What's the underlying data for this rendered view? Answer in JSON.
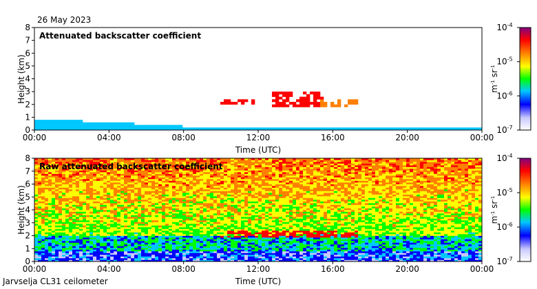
{
  "date_label": "26 May 2023",
  "footer": "Jarvselja CL31 ceilometer",
  "colormap_stops": [
    "#ffffff",
    "#c8c8ff",
    "#0000ff",
    "#00c8ff",
    "#00ff00",
    "#ffff00",
    "#ff8000",
    "#ff0000",
    "#800080"
  ],
  "chart_data": [
    {
      "type": "heatmap",
      "title": "Attenuated backscatter coefficient",
      "xlabel": "Time (UTC)",
      "ylabel": "Height (km)",
      "x_ticks": [
        "00:00",
        "04:00",
        "08:00",
        "12:00",
        "16:00",
        "20:00",
        "00:00"
      ],
      "y_ticks": [
        "0",
        "1",
        "2",
        "3",
        "4",
        "5",
        "6",
        "7",
        "8"
      ],
      "xlim": [
        0,
        24
      ],
      "ylim": [
        0,
        8
      ],
      "colorbar": {
        "scale": "log",
        "range": [
          1e-07,
          0.0001
        ],
        "ticks": [
          "10",
          "10",
          "10",
          "10"
        ],
        "tick_exponents": [
          "-4",
          "-5",
          "-6",
          "-7"
        ],
        "unit_parts": [
          "m",
          "-1",
          " sr",
          "-1"
        ]
      },
      "features": [
        {
          "kind": "boundary_layer",
          "t_start": 0,
          "t_end": 24,
          "top_km": [
            0.9,
            0.3
          ],
          "level": 3
        },
        {
          "kind": "cloud_layer",
          "t_start": 10.0,
          "t_end": 11.8,
          "base_km": 2.0,
          "top_km": 2.4,
          "level": 7
        },
        {
          "kind": "cloud_layer",
          "t_start": 12.8,
          "t_end": 15.5,
          "base_km": 1.9,
          "top_km": 2.9,
          "level": 7
        },
        {
          "kind": "cloud_layer",
          "t_start": 15.3,
          "t_end": 17.3,
          "base_km": 1.9,
          "top_km": 2.4,
          "level": 6
        }
      ]
    },
    {
      "type": "heatmap",
      "title": "Raw attenuated backscatter coefficient",
      "xlabel": "Time (UTC)",
      "ylabel": "Height (km)",
      "x_ticks": [
        "00:00",
        "04:00",
        "08:00",
        "12:00",
        "16:00",
        "20:00",
        "00:00"
      ],
      "y_ticks": [
        "0",
        "1",
        "2",
        "3",
        "4",
        "5",
        "6",
        "7",
        "8"
      ],
      "xlim": [
        0,
        24
      ],
      "ylim": [
        0,
        8
      ],
      "colorbar": {
        "scale": "log",
        "range": [
          1e-07,
          0.0001
        ],
        "ticks": [
          "10",
          "10",
          "10",
          "10"
        ],
        "tick_exponents": [
          "-4",
          "-5",
          "-6",
          "-7"
        ],
        "unit_parts": [
          "m",
          "-1",
          " sr",
          "-1"
        ]
      },
      "features": [
        {
          "kind": "noise_field",
          "t_start": 0,
          "t_end": 24,
          "level_low_km": 2,
          "level_high_km": 8,
          "level": 5
        },
        {
          "kind": "cloud_layer",
          "t_start": 10.0,
          "t_end": 17.3,
          "base_km": 1.9,
          "top_km": 2.4,
          "level": 7
        }
      ]
    }
  ]
}
